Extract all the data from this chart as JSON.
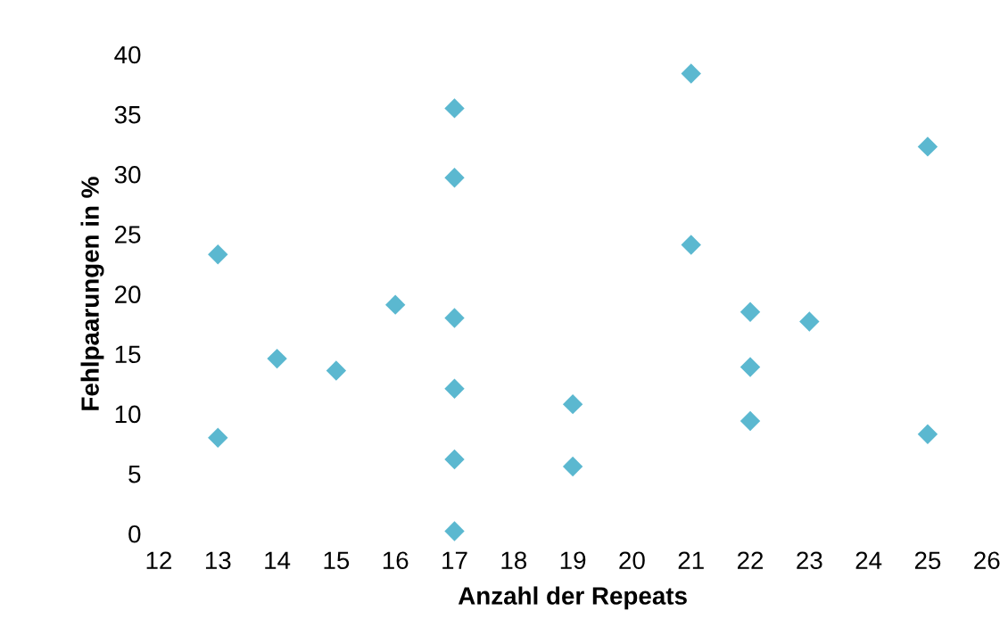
{
  "chart_data": {
    "type": "scatter",
    "xlabel": "Anzahl der Repeats",
    "ylabel": "Fehlpaarungen in %",
    "x": [
      13,
      13,
      14,
      15,
      16,
      17,
      17,
      17,
      17,
      17,
      17,
      19,
      19,
      21,
      21,
      22,
      22,
      22,
      23,
      25,
      25
    ],
    "series": [
      {
        "color": "#5bb8d0",
        "values": [
          23.3,
          8.0,
          14.6,
          13.6,
          19.1,
          35.5,
          29.7,
          18.0,
          12.1,
          6.2,
          0.2,
          10.8,
          5.6,
          38.4,
          24.1,
          18.5,
          13.9,
          9.4,
          17.7,
          32.3,
          8.3
        ]
      }
    ],
    "xlim": [
      12,
      26
    ],
    "xticks": [
      12,
      13,
      14,
      15,
      16,
      17,
      18,
      19,
      20,
      21,
      22,
      23,
      24,
      25,
      26
    ],
    "ylim": [
      0,
      40
    ],
    "yticks": [
      0,
      5,
      10,
      15,
      20,
      25,
      30,
      35,
      40
    ],
    "marker": "diamond",
    "grid": false
  }
}
